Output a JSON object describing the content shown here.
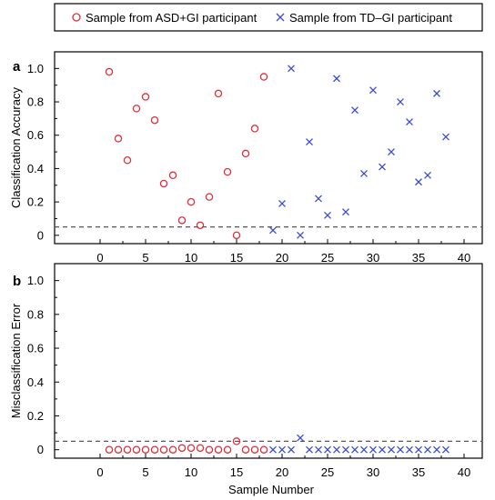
{
  "legend": {
    "asd_label": "Sample from ASD+GI participant",
    "td_label": "Sample from TD–GI participant"
  },
  "colors": {
    "asd": "#e0303a",
    "td": "#3a4ed6",
    "threshold": "#555555"
  },
  "xlabel": "Sample Number",
  "chart_data": [
    {
      "type": "scatter",
      "panel": "a",
      "ylabel": "Classification Accuracy",
      "xlim": [
        -5,
        42
      ],
      "ylim": [
        -0.05,
        1.1
      ],
      "xticks": [
        0,
        5,
        10,
        15,
        20,
        25,
        30,
        35,
        40
      ],
      "yticks": [
        0,
        0.2,
        0.4,
        0.6,
        0.8,
        1.0
      ],
      "ytick_labels": [
        "0",
        "0.2",
        "0.4",
        "0.6",
        "0.8",
        "1.0"
      ],
      "threshold": 0.05,
      "series": [
        {
          "name": "Sample from ASD+GI participant",
          "marker": "circle",
          "x": [
            1,
            2,
            3,
            4,
            5,
            6,
            7,
            8,
            9,
            10,
            11,
            12,
            13,
            14,
            15,
            16,
            17,
            18
          ],
          "y": [
            0.98,
            0.58,
            0.45,
            0.76,
            0.83,
            0.69,
            0.31,
            0.36,
            0.09,
            0.2,
            0.06,
            0.23,
            0.85,
            0.38,
            0.0,
            0.49,
            0.64,
            0.95
          ]
        },
        {
          "name": "Sample from TD–GI participant",
          "marker": "x",
          "x": [
            19,
            20,
            21,
            22,
            23,
            24,
            25,
            26,
            27,
            28,
            29,
            30,
            31,
            32,
            33,
            34,
            35,
            36,
            37,
            38
          ],
          "y": [
            0.03,
            0.19,
            1.0,
            0.0,
            0.56,
            0.22,
            0.12,
            0.94,
            0.14,
            0.75,
            0.37,
            0.87,
            0.41,
            0.5,
            0.8,
            0.68,
            0.32,
            0.36,
            0.85,
            0.59
          ]
        }
      ]
    },
    {
      "type": "scatter",
      "panel": "b",
      "ylabel": "Misclassification  Error",
      "xlim": [
        -5,
        42
      ],
      "ylim": [
        -0.05,
        1.1
      ],
      "xticks": [
        0,
        5,
        10,
        15,
        20,
        25,
        30,
        35,
        40
      ],
      "yticks": [
        0,
        0.2,
        0.4,
        0.6,
        0.8,
        1.0
      ],
      "ytick_labels": [
        "0",
        "0.2",
        "0.4",
        "0.6",
        "0.8",
        "1.0"
      ],
      "threshold": 0.05,
      "series": [
        {
          "name": "Sample from ASD+GI participant",
          "marker": "circle",
          "x": [
            1,
            2,
            3,
            4,
            5,
            6,
            7,
            8,
            9,
            10,
            11,
            12,
            13,
            14,
            15,
            16,
            17,
            18
          ],
          "y": [
            0,
            0,
            0,
            0,
            0,
            0,
            0,
            0,
            0.01,
            0.01,
            0.01,
            0,
            0,
            0,
            0.05,
            0,
            0,
            0
          ]
        },
        {
          "name": "Sample from TD–GI participant",
          "marker": "x",
          "x": [
            19,
            20,
            21,
            22,
            23,
            24,
            25,
            26,
            27,
            28,
            29,
            30,
            31,
            32,
            33,
            34,
            35,
            36,
            37,
            38
          ],
          "y": [
            0,
            0,
            0,
            0.07,
            0,
            0,
            0,
            0,
            0,
            0,
            0,
            0,
            0,
            0,
            0,
            0,
            0,
            0,
            0,
            0
          ]
        }
      ]
    }
  ]
}
